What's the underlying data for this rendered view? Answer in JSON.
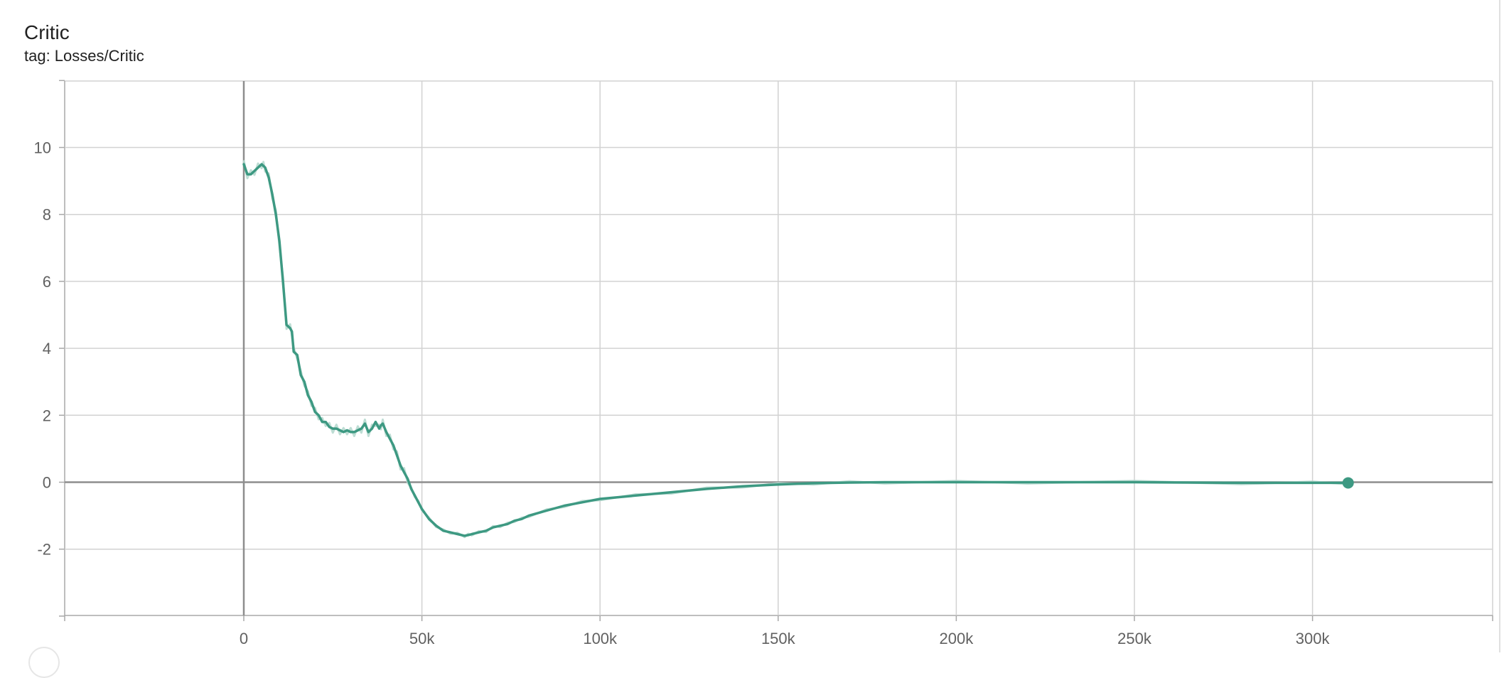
{
  "card": {
    "title": "Critic",
    "subtitle": "tag: Losses/Critic"
  },
  "colors": {
    "series": "#3d9982",
    "series_raw": "#b7d9cf",
    "grid": "#d2d2d2",
    "zero_axis": "#8e8e8e",
    "tick_text": "#616161",
    "title_text": "#212121"
  },
  "chart_data": {
    "type": "line",
    "title": "Critic",
    "subtitle": "tag: Losses/Critic",
    "xlabel": "",
    "ylabel": "",
    "xlim": [
      -50000,
      350000
    ],
    "ylim": [
      -4,
      12
    ],
    "x_ticks": [
      0,
      50000,
      100000,
      150000,
      200000,
      250000,
      300000
    ],
    "x_tick_labels": [
      "0",
      "50k",
      "100k",
      "150k",
      "200k",
      "250k",
      "300k"
    ],
    "y_ticks": [
      10,
      8,
      6,
      4,
      2,
      0,
      -2
    ],
    "y_tick_labels": [
      "10",
      "8",
      "6",
      "4",
      "2",
      "0",
      "-2"
    ],
    "grid": true,
    "legend": "none",
    "series": [
      {
        "smoothed": true,
        "x": [
          0,
          1000,
          2000,
          3000,
          4000,
          5000,
          5500,
          6000,
          7000,
          8000,
          9000,
          10000,
          11000,
          12000,
          13000,
          13500,
          14000,
          15000,
          16000,
          17000,
          18000,
          19000,
          20000,
          21000,
          22000,
          23000,
          24000,
          25000,
          26000,
          27000,
          28000,
          29000,
          30000,
          31000,
          32000,
          33000,
          34000,
          35000,
          36000,
          37000,
          38000,
          38500,
          39000,
          40000,
          41000,
          42000,
          43000,
          44000,
          45000,
          46000,
          47000,
          48000,
          49000,
          50000,
          52000,
          54000,
          56000,
          58000,
          60000,
          62000,
          63000,
          64000,
          66000,
          68000,
          70000,
          72000,
          74000,
          76000,
          78000,
          80000,
          85000,
          90000,
          95000,
          100000,
          110000,
          120000,
          130000,
          140000,
          150000,
          160000,
          170000,
          180000,
          200000,
          220000,
          250000,
          280000,
          300000,
          310000
        ],
        "y": [
          9.5,
          9.2,
          9.2,
          9.3,
          9.4,
          9.5,
          9.45,
          9.4,
          9.1,
          8.6,
          8.0,
          7.2,
          6.0,
          4.7,
          4.6,
          4.5,
          3.9,
          3.8,
          3.2,
          3.0,
          2.6,
          2.4,
          2.1,
          2.0,
          1.8,
          1.8,
          1.65,
          1.6,
          1.6,
          1.55,
          1.5,
          1.55,
          1.5,
          1.5,
          1.55,
          1.6,
          1.75,
          1.5,
          1.6,
          1.8,
          1.6,
          1.7,
          1.75,
          1.5,
          1.3,
          1.1,
          0.8,
          0.5,
          0.3,
          0.1,
          -0.2,
          -0.4,
          -0.6,
          -0.8,
          -1.1,
          -1.3,
          -1.45,
          -1.5,
          -1.55,
          -1.6,
          -1.58,
          -1.55,
          -1.5,
          -1.45,
          -1.35,
          -1.3,
          -1.25,
          -1.15,
          -1.1,
          -1.0,
          -0.85,
          -0.7,
          -0.6,
          -0.5,
          -0.4,
          -0.3,
          -0.2,
          -0.12,
          -0.07,
          -0.03,
          -0.01,
          0.0,
          0.0,
          0.0,
          0.0,
          -0.02,
          -0.02,
          -0.02
        ]
      }
    ],
    "last_point": {
      "x": 310000,
      "y": -0.02
    }
  }
}
